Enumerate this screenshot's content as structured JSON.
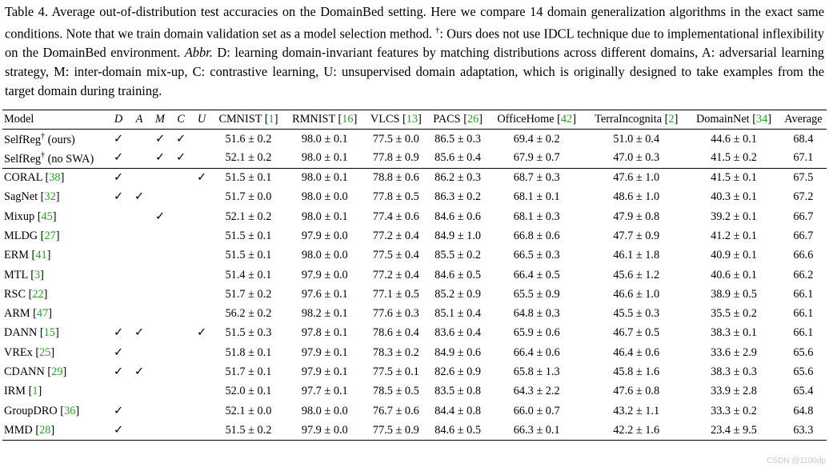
{
  "caption": {
    "lead": "Table 4. Average out-of-distribution test accuracies on the DomainBed setting. Here we compare 14 domain generalization algorithms in the exact same conditions. Note that we train domain validation set as a model selection method. ",
    "dagger": "†",
    "note": ": Ours does not use IDCL technique due to implementational inflexibility on the DomainBed environment. ",
    "abbr": "Abbr.",
    "rest": " D: learning domain-invariant features by matching distributions across different domains, A: adversarial learning strategy, M: inter-domain mix-up, C: contrastive learning, U: unsupervised domain adaptation, which is originally designed to take examples from the target domain during training."
  },
  "table": {
    "header": {
      "model": "Model",
      "flags": [
        "D",
        "A",
        "M",
        "C",
        "U"
      ],
      "datasets": [
        {
          "name": "CMNIST",
          "ref": "1"
        },
        {
          "name": "RMNIST",
          "ref": "16"
        },
        {
          "name": "VLCS",
          "ref": "13"
        },
        {
          "name": "PACS",
          "ref": "26"
        },
        {
          "name": "OfficeHome",
          "ref": "42"
        },
        {
          "name": "TerraIncognita",
          "ref": "2"
        },
        {
          "name": "DomainNet",
          "ref": "34"
        }
      ],
      "average": "Average"
    },
    "check": "✓",
    "ours": [
      {
        "name": "SelfReg",
        "sup": "†",
        "suffix": " (ours)",
        "ref": "",
        "flags": [
          1,
          0,
          1,
          1,
          0
        ],
        "vals": [
          "51.6 ± 0.2",
          "98.0 ± 0.1",
          "77.5 ± 0.0",
          "86.5 ± 0.3",
          "69.4 ± 0.2",
          "51.0 ± 0.4",
          "44.6 ± 0.1"
        ],
        "avg": "68.4"
      },
      {
        "name": "SelfReg",
        "sup": "†",
        "suffix": " (no SWA)",
        "ref": "",
        "flags": [
          1,
          0,
          1,
          1,
          0
        ],
        "vals": [
          "52.1 ± 0.2",
          "98.0 ± 0.1",
          "77.8 ± 0.9",
          "85.6 ± 0.4",
          "67.9 ± 0.7",
          "47.0 ± 0.3",
          "41.5 ± 0.2"
        ],
        "avg": "67.1"
      }
    ],
    "others": [
      {
        "name": "CORAL",
        "ref": "38",
        "flags": [
          1,
          0,
          0,
          0,
          1
        ],
        "vals": [
          "51.5 ± 0.1",
          "98.0 ± 0.1",
          "78.8 ± 0.6",
          "86.2 ± 0.3",
          "68.7 ± 0.3",
          "47.6 ± 1.0",
          "41.5 ± 0.1"
        ],
        "avg": "67.5"
      },
      {
        "name": "SagNet",
        "ref": "32",
        "flags": [
          1,
          1,
          0,
          0,
          0
        ],
        "vals": [
          "51.7 ± 0.0",
          "98.0 ± 0.0",
          "77.8 ± 0.5",
          "86.3 ± 0.2",
          "68.1 ± 0.1",
          "48.6 ± 1.0",
          "40.3 ± 0.1"
        ],
        "avg": "67.2"
      },
      {
        "name": "Mixup",
        "ref": "45",
        "flags": [
          0,
          0,
          1,
          0,
          0
        ],
        "vals": [
          "52.1 ± 0.2",
          "98.0 ± 0.1",
          "77.4 ± 0.6",
          "84.6 ± 0.6",
          "68.1 ± 0.3",
          "47.9 ± 0.8",
          "39.2 ± 0.1"
        ],
        "avg": "66.7"
      },
      {
        "name": "MLDG",
        "ref": "27",
        "flags": [
          0,
          0,
          0,
          0,
          0
        ],
        "vals": [
          "51.5 ± 0.1",
          "97.9 ± 0.0",
          "77.2 ± 0.4",
          "84.9 ± 1.0",
          "66.8 ± 0.6",
          "47.7 ± 0.9",
          "41.2 ± 0.1"
        ],
        "avg": "66.7"
      },
      {
        "name": "ERM",
        "ref": "41",
        "flags": [
          0,
          0,
          0,
          0,
          0
        ],
        "vals": [
          "51.5 ± 0.1",
          "98.0 ± 0.0",
          "77.5 ± 0.4",
          "85.5 ± 0.2",
          "66.5 ± 0.3",
          "46.1 ± 1.8",
          "40.9 ± 0.1"
        ],
        "avg": "66.6"
      },
      {
        "name": "MTL",
        "ref": "3",
        "flags": [
          0,
          0,
          0,
          0,
          0
        ],
        "vals": [
          "51.4 ± 0.1",
          "97.9 ± 0.0",
          "77.2 ± 0.4",
          "84.6 ± 0.5",
          "66.4 ± 0.5",
          "45.6 ± 1.2",
          "40.6 ± 0.1"
        ],
        "avg": "66.2"
      },
      {
        "name": "RSC",
        "ref": "22",
        "flags": [
          0,
          0,
          0,
          0,
          0
        ],
        "vals": [
          "51.7 ± 0.2",
          "97.6 ± 0.1",
          "77.1 ± 0.5",
          "85.2 ± 0.9",
          "65.5 ± 0.9",
          "46.6 ± 1.0",
          "38.9 ± 0.5"
        ],
        "avg": "66.1"
      },
      {
        "name": "ARM",
        "ref": "47",
        "flags": [
          0,
          0,
          0,
          0,
          0
        ],
        "vals": [
          "56.2 ± 0.2",
          "98.2 ± 0.1",
          "77.6 ± 0.3",
          "85.1 ± 0.4",
          "64.8 ± 0.3",
          "45.5 ± 0.3",
          "35.5 ± 0.2"
        ],
        "avg": "66.1"
      },
      {
        "name": "DANN",
        "ref": "15",
        "flags": [
          1,
          1,
          0,
          0,
          1
        ],
        "vals": [
          "51.5 ± 0.3",
          "97.8 ± 0.1",
          "78.6 ± 0.4",
          "83.6 ± 0.4",
          "65.9 ± 0.6",
          "46.7 ± 0.5",
          "38.3 ± 0.1"
        ],
        "avg": "66.1"
      },
      {
        "name": "VREx",
        "ref": "25",
        "flags": [
          1,
          0,
          0,
          0,
          0
        ],
        "vals": [
          "51.8 ± 0.1",
          "97.9 ± 0.1",
          "78.3 ± 0.2",
          "84.9 ± 0.6",
          "66.4 ± 0.6",
          "46.4 ± 0.6",
          "33.6 ± 2.9"
        ],
        "avg": "65.6"
      },
      {
        "name": "CDANN",
        "ref": "29",
        "flags": [
          1,
          1,
          0,
          0,
          0
        ],
        "vals": [
          "51.7 ± 0.1",
          "97.9 ± 0.1",
          "77.5 ± 0.1",
          "82.6 ± 0.9",
          "65.8 ± 1.3",
          "45.8 ± 1.6",
          "38.3 ± 0.3"
        ],
        "avg": "65.6"
      },
      {
        "name": "IRM",
        "ref": "1",
        "flags": [
          0,
          0,
          0,
          0,
          0
        ],
        "vals": [
          "52.0 ± 0.1",
          "97.7 ± 0.1",
          "78.5 ± 0.5",
          "83.5 ± 0.8",
          "64.3 ± 2.2",
          "47.6 ± 0.8",
          "33.9 ± 2.8"
        ],
        "avg": "65.4"
      },
      {
        "name": "GroupDRO",
        "ref": "36",
        "flags": [
          1,
          0,
          0,
          0,
          0
        ],
        "vals": [
          "52.1 ± 0.0",
          "98.0 ± 0.0",
          "76.7 ± 0.6",
          "84.4 ± 0.8",
          "66.0 ± 0.7",
          "43.2 ± 1.1",
          "33.3 ± 0.2"
        ],
        "avg": "64.8"
      },
      {
        "name": "MMD",
        "ref": "28",
        "flags": [
          1,
          0,
          0,
          0,
          0
        ],
        "vals": [
          "51.5 ± 0.2",
          "97.9 ± 0.0",
          "77.5 ± 0.9",
          "84.6 ± 0.5",
          "66.3 ± 0.1",
          "42.2 ± 1.6",
          "23.4 ± 9.5"
        ],
        "avg": "63.3"
      }
    ]
  },
  "watermark": "CSDN @1100dp"
}
